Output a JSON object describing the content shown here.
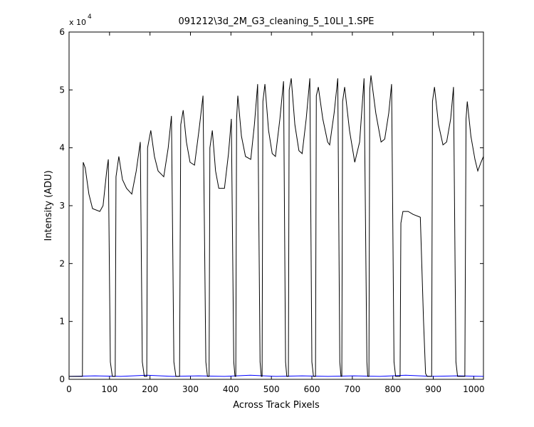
{
  "chart_data": {
    "type": "line",
    "title": "091212\\3d_2M_G3_cleaning_5_10LI_1.SPE",
    "xlabel": "Across Track Pixels",
    "ylabel": "Intensity (ADU)",
    "exponent_base": "x 10",
    "exponent_power": "4",
    "xlim": [
      0,
      1024
    ],
    "xticks": [
      0,
      100,
      200,
      300,
      400,
      500,
      600,
      700,
      800,
      900,
      1000
    ],
    "ylim": [
      0,
      6
    ],
    "yticks": [
      0,
      1,
      2,
      3,
      4,
      5,
      6
    ],
    "series": [
      {
        "color": "#000000",
        "x": [
          0,
          33,
          35,
          40,
          49,
          58,
          76,
          84,
          93,
          97,
          102,
          107,
          114,
          116,
          123,
          132,
          142,
          155,
          166,
          176,
          181,
          186,
          192,
          194,
          202,
          211,
          220,
          234,
          245,
          253,
          259,
          264,
          273,
          276,
          282,
          290,
          299,
          310,
          321,
          331,
          338,
          342,
          346,
          348,
          354,
          362,
          370,
          384,
          394,
          401,
          407,
          410,
          412,
          414,
          417,
          426,
          436,
          449,
          458,
          466,
          472,
          475,
          477,
          479,
          484,
          493,
          502,
          510,
          521,
          530,
          535,
          538,
          542,
          544,
          549,
          558,
          568,
          576,
          586,
          595,
          600,
          604,
          609,
          611,
          616,
          627,
          639,
          644,
          655,
          664,
          669,
          672,
          674,
          676,
          681,
          693,
          706,
          718,
          724,
          729,
          736,
          738,
          741,
          743,
          746,
          758,
          771,
          780,
          790,
          797,
          803,
          807,
          818,
          820,
          825,
          838,
          850,
          868,
          876,
          881,
          885,
          896,
          898,
          903,
          913,
          924,
          933,
          943,
          950,
          956,
          960,
          978,
          981,
          984,
          993,
          1003,
          1010,
          1018,
          1024
        ],
        "values": [
          0.05,
          0.05,
          3.75,
          3.65,
          3.2,
          2.95,
          2.9,
          3.0,
          3.6,
          3.8,
          0.3,
          0.05,
          0.05,
          3.5,
          3.85,
          3.45,
          3.3,
          3.2,
          3.6,
          4.1,
          0.3,
          0.05,
          0.05,
          4.0,
          4.3,
          3.85,
          3.6,
          3.5,
          4.0,
          4.55,
          0.3,
          0.05,
          0.05,
          4.4,
          4.65,
          4.1,
          3.75,
          3.7,
          4.3,
          4.9,
          0.3,
          0.05,
          0.05,
          4.0,
          4.3,
          3.6,
          3.3,
          3.3,
          3.9,
          4.5,
          0.3,
          0.05,
          0.05,
          4.5,
          4.9,
          4.2,
          3.85,
          3.8,
          4.4,
          5.1,
          0.3,
          0.05,
          0.05,
          4.8,
          5.1,
          4.3,
          3.9,
          3.85,
          4.5,
          5.15,
          0.3,
          0.05,
          0.05,
          5.0,
          5.2,
          4.4,
          3.95,
          3.9,
          4.5,
          5.2,
          0.3,
          0.05,
          0.05,
          4.9,
          5.05,
          4.5,
          4.1,
          4.05,
          4.6,
          5.2,
          0.3,
          0.05,
          0.05,
          4.8,
          5.05,
          4.3,
          3.75,
          4.1,
          4.7,
          5.2,
          0.3,
          0.05,
          0.05,
          5.0,
          5.25,
          4.6,
          4.1,
          4.15,
          4.6,
          5.1,
          0.3,
          0.05,
          0.05,
          2.7,
          2.9,
          2.9,
          2.85,
          2.8,
          1.0,
          0.1,
          0.05,
          0.05,
          4.8,
          5.05,
          4.4,
          4.05,
          4.1,
          4.5,
          5.05,
          0.3,
          0.05,
          0.05,
          4.5,
          4.8,
          4.2,
          3.8,
          3.6,
          3.75,
          3.85
        ]
      },
      {
        "color": "#0000ff",
        "x": [
          0,
          64,
          128,
          192,
          256,
          320,
          384,
          448,
          512,
          576,
          640,
          704,
          768,
          832,
          896,
          960,
          1024
        ],
        "values": [
          0.05,
          0.06,
          0.05,
          0.07,
          0.05,
          0.06,
          0.05,
          0.07,
          0.05,
          0.06,
          0.05,
          0.06,
          0.05,
          0.07,
          0.05,
          0.06,
          0.05
        ]
      }
    ]
  }
}
